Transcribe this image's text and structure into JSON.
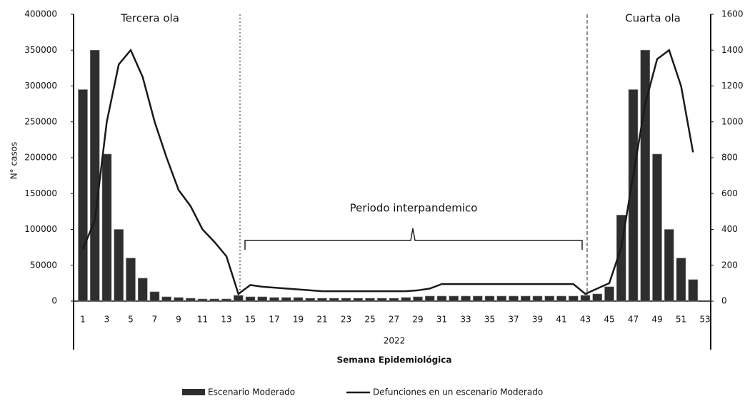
{
  "chart_data": {
    "type": "bar",
    "x_label": "Semana Epidemiológica",
    "x_sublabel": "2022",
    "y_label": "N° casos",
    "categories": [
      "1",
      null,
      "3",
      null,
      "5",
      null,
      "7",
      null,
      "9",
      null,
      "11",
      null,
      "13",
      null,
      "15",
      null,
      "17",
      null,
      "19",
      null,
      "21",
      null,
      "23",
      null,
      "25",
      null,
      "27",
      null,
      "29",
      null,
      "31",
      null,
      "33",
      null,
      "35",
      null,
      "37",
      null,
      "39",
      null,
      "41",
      null,
      "43",
      null,
      "45",
      null,
      "47",
      null,
      "49",
      null,
      "51",
      null,
      "53"
    ],
    "series": [
      {
        "name": "Escenario Moderado",
        "type": "bar",
        "color": "#2e2e2e",
        "values": [
          295000,
          350000,
          205000,
          100000,
          60000,
          32000,
          13000,
          6000,
          5000,
          4000,
          3000,
          3000,
          3000,
          8000,
          6000,
          6000,
          5000,
          5000,
          5000,
          4000,
          4000,
          4000,
          4000,
          4000,
          4000,
          4000,
          4000,
          5000,
          6000,
          7000,
          7000,
          7000,
          7000,
          7000,
          7000,
          7000,
          7000,
          7000,
          7000,
          7000,
          7000,
          7000,
          8000,
          10000,
          20000,
          120000,
          295000,
          350000,
          205000,
          100000,
          60000,
          30000,
          null
        ]
      },
      {
        "name": "Defunciones en un escenario Moderado",
        "type": "line",
        "axis": "y2",
        "color": "#1a1a1a",
        "values": [
          290,
          450,
          1000,
          1320,
          1400,
          1250,
          1000,
          800,
          620,
          530,
          400,
          330,
          250,
          40,
          90,
          80,
          75,
          70,
          65,
          60,
          55,
          55,
          55,
          55,
          55,
          55,
          55,
          55,
          60,
          70,
          95,
          95,
          95,
          95,
          95,
          95,
          95,
          95,
          95,
          95,
          95,
          95,
          40,
          70,
          100,
          300,
          700,
          1100,
          1350,
          1400,
          1200,
          830,
          null
        ]
      }
    ],
    "ylim": [
      0,
      400000
    ],
    "yticks": [
      0,
      50000,
      100000,
      150000,
      200000,
      250000,
      300000,
      350000,
      400000
    ],
    "y2lim": [
      0,
      1600
    ],
    "y2ticks": [
      0,
      200,
      400,
      600,
      800,
      1000,
      1200,
      1400,
      1600
    ],
    "annotations": [
      "Tercera ola",
      "Cuarta ola",
      "Periodo interpandemico"
    ],
    "grid": false
  }
}
